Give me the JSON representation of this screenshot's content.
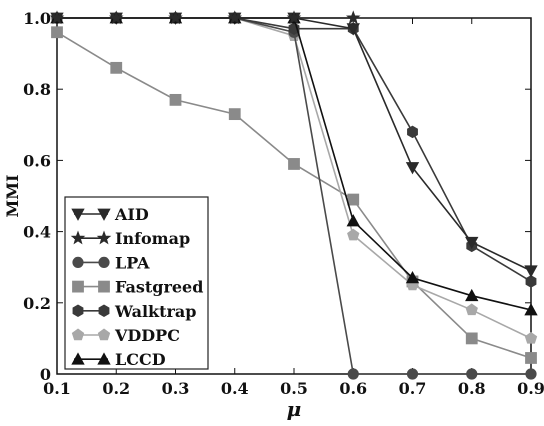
{
  "chart_data": {
    "type": "line",
    "xlabel": "μ",
    "ylabel": "MMI",
    "xlim": [
      0.1,
      0.9
    ],
    "ylim": [
      0,
      1.0
    ],
    "x_ticks": [
      "0.1",
      "0.2",
      "0.3",
      "0.4",
      "0.5",
      "0.6",
      "0.7",
      "0.8",
      "0.9"
    ],
    "y_ticks": [
      "0",
      "0.2",
      "0.4",
      "0.6",
      "0.8",
      "1.0"
    ],
    "legend_position": "bottom-left",
    "grid": false,
    "series": [
      {
        "name": "AID",
        "marker": "triangle-down",
        "color": "#2a2a2a",
        "x": [
          0.1,
          0.2,
          0.3,
          0.4,
          0.5,
          0.6,
          0.7,
          0.8,
          0.9
        ],
        "y": [
          1.0,
          1.0,
          1.0,
          1.0,
          1.0,
          0.97,
          0.58,
          0.37,
          0.29
        ]
      },
      {
        "name": "Infomap",
        "marker": "star",
        "color": "#2a2a2a",
        "x": [
          0.1,
          0.2,
          0.3,
          0.4,
          0.5,
          0.6
        ],
        "y": [
          1.0,
          1.0,
          1.0,
          1.0,
          1.0,
          1.0
        ]
      },
      {
        "name": "LPA",
        "marker": "circle",
        "color": "#4a4a4a",
        "x": [
          0.1,
          0.2,
          0.3,
          0.4,
          0.5,
          0.6,
          0.7,
          0.8,
          0.9
        ],
        "y": [
          1.0,
          1.0,
          1.0,
          1.0,
          0.96,
          0.0,
          0.0,
          0.0,
          0.0
        ]
      },
      {
        "name": "Fastgreed",
        "marker": "square",
        "color": "#8a8a8a",
        "x": [
          0.1,
          0.2,
          0.3,
          0.4,
          0.5,
          0.6,
          0.7,
          0.8,
          0.9
        ],
        "y": [
          0.96,
          0.86,
          0.77,
          0.73,
          0.59,
          0.49,
          0.26,
          0.1,
          0.045
        ]
      },
      {
        "name": "Walktrap",
        "marker": "hexagon",
        "color": "#3a3a3a",
        "x": [
          0.1,
          0.2,
          0.3,
          0.4,
          0.5,
          0.6,
          0.7,
          0.8,
          0.9
        ],
        "y": [
          1.0,
          1.0,
          1.0,
          1.0,
          0.97,
          0.97,
          0.68,
          0.36,
          0.26
        ]
      },
      {
        "name": "VDDPC",
        "marker": "pentagon",
        "color": "#a8a8a8",
        "x": [
          0.1,
          0.2,
          0.3,
          0.4,
          0.5,
          0.6,
          0.7,
          0.8,
          0.9
        ],
        "y": [
          1.0,
          1.0,
          1.0,
          1.0,
          0.95,
          0.39,
          0.25,
          0.18,
          0.1
        ]
      },
      {
        "name": "LCCD",
        "marker": "triangle-up",
        "color": "#111111",
        "x": [
          0.1,
          0.2,
          0.3,
          0.4,
          0.5,
          0.6,
          0.7,
          0.8,
          0.9
        ],
        "y": [
          1.0,
          1.0,
          1.0,
          1.0,
          1.0,
          0.43,
          0.27,
          0.22,
          0.18
        ]
      }
    ]
  }
}
